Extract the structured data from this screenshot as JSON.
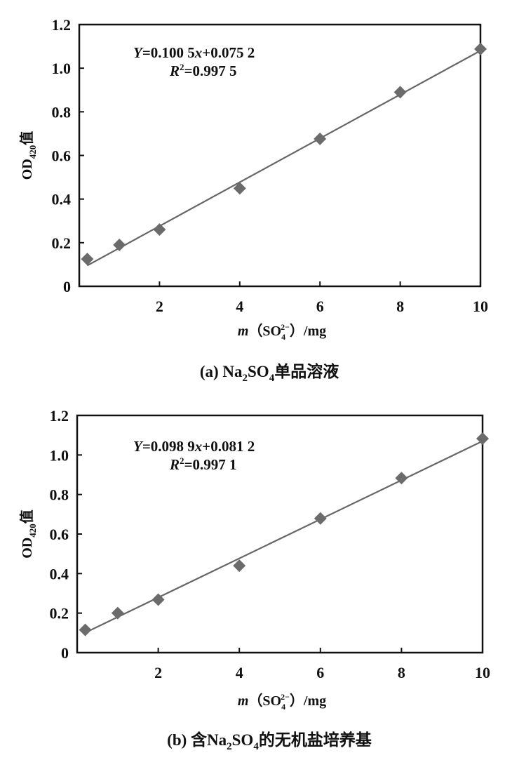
{
  "chart_data": [
    {
      "type": "scatter",
      "title": "",
      "caption": "(a) Na2SO4单品溶液",
      "caption_parts": {
        "prefix": "(a) Na",
        "sub1": "2",
        "mid": "SO",
        "sub2": "4",
        "suffix": "单品溶液"
      },
      "xlabel": "m（SO42−）/mg",
      "xlabel_parts": {
        "m": "m",
        "open": "（SO",
        "sub": "4",
        "sup": "2−",
        "close": "）/mg"
      },
      "ylabel": "OD420值",
      "ylabel_parts": {
        "main": "OD",
        "sub": "420",
        "suffix": "值"
      },
      "xlim": [
        0,
        10
      ],
      "ylim": [
        0,
        1.2
      ],
      "xticks": [
        "2",
        "4",
        "6",
        "8",
        "10"
      ],
      "yticks": [
        "0",
        "0.2",
        "0.4",
        "0.6",
        "0.8",
        "1.0",
        "1.2"
      ],
      "grid": false,
      "x": [
        0.2,
        1,
        2,
        4,
        6,
        8,
        10
      ],
      "y": [
        0.125,
        0.19,
        0.26,
        0.449,
        0.676,
        0.89,
        1.088
      ],
      "fit": {
        "slope": 0.1005,
        "intercept": 0.0752
      },
      "equation": {
        "y_label": "Y",
        "y_text": "=0.100 5",
        "x_label": "x",
        "rest": "+0.075 2",
        "r_label": "R",
        "r_sup": "2",
        "r_text": "=0.997 5"
      },
      "marker_color": "#6b6b6b",
      "line_color": "#666666"
    },
    {
      "type": "scatter",
      "title": "",
      "caption": "(b) 含Na2SO4的无机盐培养基",
      "caption_parts": {
        "prefix": "(b) 含Na",
        "sub1": "2",
        "mid": "SO",
        "sub2": "4",
        "suffix": "的无机盐培养基"
      },
      "xlabel": "m（SO42−）/mg",
      "xlabel_parts": {
        "m": "m",
        "open": "（SO",
        "sub": "4",
        "sup": "2−",
        "close": "）/mg"
      },
      "ylabel": "OD420值",
      "ylabel_parts": {
        "main": "OD",
        "sub": "420",
        "suffix": "值"
      },
      "xlim": [
        0,
        10
      ],
      "ylim": [
        0,
        1.2
      ],
      "xticks": [
        "2",
        "4",
        "6",
        "8",
        "10"
      ],
      "yticks": [
        "0",
        "0.2",
        "0.4",
        "0.6",
        "0.8",
        "1.0",
        "1.2"
      ],
      "grid": false,
      "x": [
        0.2,
        1,
        2,
        4,
        6,
        8,
        10
      ],
      "y": [
        0.115,
        0.2,
        0.268,
        0.44,
        0.679,
        0.883,
        1.083
      ],
      "fit": {
        "slope": 0.0989,
        "intercept": 0.0812
      },
      "equation": {
        "y_label": "Y",
        "y_text": "=0.098 9",
        "x_label": "x",
        "rest": "+0.081 2",
        "r_label": "R",
        "r_sup": "2",
        "r_text": "=0.997 1"
      },
      "marker_color": "#6b6b6b",
      "line_color": "#666666"
    }
  ]
}
